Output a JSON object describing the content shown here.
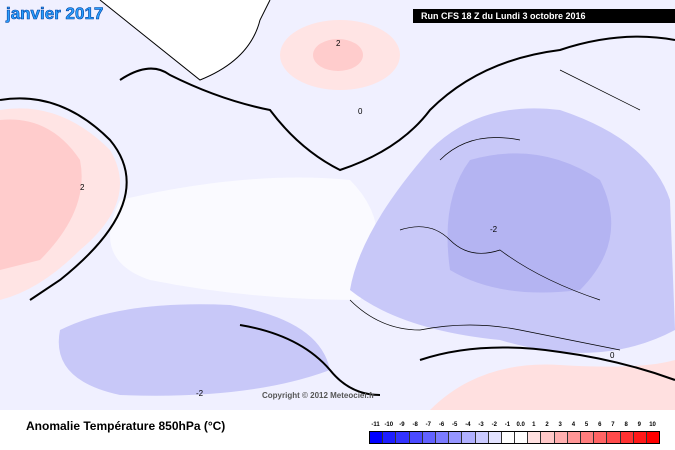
{
  "header": {
    "title": "janvier 2017",
    "run_info": "Run CFS 18 Z du Lundi 3 octobre 2016"
  },
  "map": {
    "copyright": "Copyright © 2012 Meteociel.fr",
    "contour_labels": [
      "0",
      "2",
      "-2"
    ]
  },
  "footer": {
    "caption": "Anomalie Température 850hPa (°C)"
  },
  "legend": {
    "labels": [
      "-11",
      "-10",
      "-9",
      "-8",
      "-7",
      "-6",
      "-5",
      "-4",
      "-3",
      "-2",
      "-1",
      "0.0",
      "1",
      "2",
      "3",
      "4",
      "5",
      "6",
      "7",
      "8",
      "9",
      "10"
    ],
    "colors": [
      "#0000ff",
      "#1e1eff",
      "#3333ff",
      "#4a4aff",
      "#6262ff",
      "#7b7bff",
      "#9595ff",
      "#b0b0ff",
      "#cacaff",
      "#e2e2ff",
      "#ffffff",
      "#ffffff",
      "#ffe0e0",
      "#ffc8c8",
      "#ffafaf",
      "#ff9696",
      "#ff7d7d",
      "#ff6464",
      "#ff4b4b",
      "#ff3232",
      "#ff1919",
      "#ff0000"
    ]
  }
}
